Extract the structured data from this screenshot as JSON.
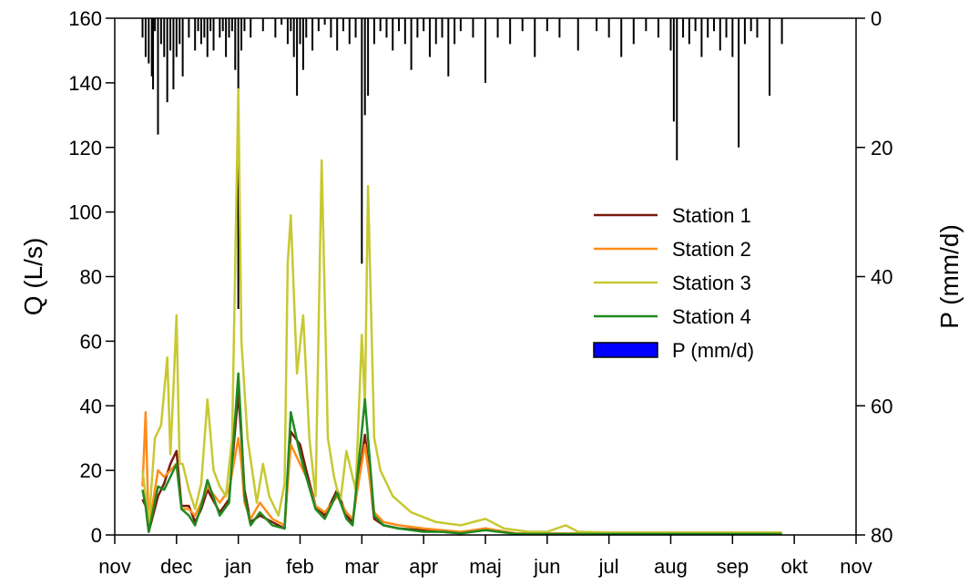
{
  "chart_data": {
    "type": "line",
    "xlabel": "",
    "ylabel": "Q (L/s)",
    "y2label": "P (mm/d)",
    "ylim": [
      0,
      160
    ],
    "y2lim": [
      80,
      0
    ],
    "y_ticks": [
      "0",
      "20",
      "40",
      "60",
      "80",
      "100",
      "120",
      "140",
      "160"
    ],
    "y2_ticks": [
      "0",
      "20",
      "40",
      "60",
      "80"
    ],
    "x_ticks": [
      "nov",
      "dec",
      "jan",
      "feb",
      "mar",
      "apr",
      "maj",
      "jun",
      "jul",
      "aug",
      "sep",
      "okt",
      "nov"
    ],
    "x_unit": "months since nov",
    "grid": false,
    "legend_position": "right-center",
    "legend": [
      "Station 1",
      "Station 2",
      "Station 3",
      "Station 4",
      "P (mm/d)"
    ],
    "colors": {
      "station1": "#7a1a0a",
      "station2": "#ff8c1a",
      "station3": "#c8c832",
      "station4": "#1f8a1f",
      "precip_fill": "#0000ff",
      "precip_bar": "#000000"
    },
    "series": [
      {
        "name": "Station 1",
        "x": [
          0.45,
          0.5,
          0.55,
          0.7,
          0.8,
          0.9,
          1.0,
          1.08,
          1.2,
          1.3,
          1.4,
          1.5,
          1.7,
          1.85,
          2.0,
          2.05,
          2.1,
          2.2,
          2.35,
          2.55,
          2.75,
          2.85,
          3.0,
          3.1,
          3.25,
          3.4,
          3.6,
          3.75,
          3.85,
          4.05,
          4.2,
          4.35,
          4.6,
          5.0,
          5.3,
          5.6,
          6.0,
          6.5,
          7.0,
          8.0,
          9.0,
          10.0,
          10.8
        ],
        "y": [
          11,
          9,
          1,
          12,
          16,
          22,
          26,
          9,
          9,
          4,
          8,
          14,
          7,
          11,
          44,
          30,
          14,
          4,
          6,
          4,
          2,
          32,
          28,
          20,
          9,
          6,
          14,
          6,
          4,
          31,
          5,
          3,
          2,
          1.5,
          1,
          0.5,
          2,
          0.3,
          0.3,
          0.3,
          0.3,
          0.3,
          0.3
        ]
      },
      {
        "name": "Station 2",
        "x": [
          0.45,
          0.5,
          0.55,
          0.7,
          0.8,
          0.9,
          1.0,
          1.08,
          1.2,
          1.3,
          1.4,
          1.5,
          1.7,
          1.85,
          2.0,
          2.05,
          2.1,
          2.2,
          2.35,
          2.55,
          2.75,
          2.85,
          3.0,
          3.1,
          3.25,
          3.4,
          3.6,
          3.75,
          3.85,
          4.05,
          4.2,
          4.35,
          4.6,
          5.0,
          5.3,
          5.6,
          6.0,
          6.5,
          7.0,
          8.0,
          9.0,
          10.0,
          10.8
        ],
        "y": [
          15,
          38,
          2,
          20,
          18,
          20,
          22,
          8,
          8,
          6,
          10,
          15,
          10,
          14,
          30,
          22,
          10,
          5,
          10,
          5,
          3,
          28,
          22,
          18,
          9,
          7,
          12,
          7,
          5,
          28,
          7,
          4,
          3,
          2,
          1.5,
          1,
          2,
          0.5,
          0.5,
          0.4,
          0.4,
          0.4,
          0.4
        ]
      },
      {
        "name": "Station 3",
        "x": [
          0.45,
          0.5,
          0.55,
          0.65,
          0.75,
          0.85,
          0.9,
          0.95,
          1.0,
          1.05,
          1.1,
          1.2,
          1.3,
          1.4,
          1.5,
          1.6,
          1.7,
          1.8,
          1.9,
          2.0,
          2.05,
          2.15,
          2.3,
          2.4,
          2.5,
          2.65,
          2.75,
          2.8,
          2.85,
          2.95,
          3.05,
          3.15,
          3.25,
          3.35,
          3.45,
          3.55,
          3.65,
          3.75,
          3.9,
          4.0,
          4.05,
          4.1,
          4.2,
          4.3,
          4.5,
          4.8,
          5.2,
          5.6,
          6.0,
          6.3,
          6.7,
          7.0,
          7.3,
          7.5,
          8.0,
          9.0,
          10.0,
          10.8
        ],
        "y": [
          20,
          12,
          3,
          30,
          34,
          55,
          25,
          45,
          68,
          22,
          22,
          14,
          8,
          16,
          42,
          20,
          15,
          12,
          30,
          138,
          60,
          30,
          10,
          22,
          12,
          6,
          16,
          84,
          99,
          50,
          68,
          30,
          12,
          116,
          30,
          18,
          10,
          26,
          14,
          62,
          40,
          108,
          30,
          20,
          12,
          7,
          4,
          3,
          5,
          2,
          1,
          1,
          3,
          1,
          0.8,
          0.8,
          0.8,
          0.8
        ]
      },
      {
        "name": "Station 4",
        "x": [
          0.45,
          0.5,
          0.55,
          0.7,
          0.8,
          0.9,
          1.0,
          1.08,
          1.2,
          1.3,
          1.4,
          1.5,
          1.7,
          1.85,
          2.0,
          2.05,
          2.1,
          2.2,
          2.35,
          2.55,
          2.75,
          2.85,
          3.0,
          3.1,
          3.25,
          3.4,
          3.6,
          3.75,
          3.85,
          4.05,
          4.2,
          4.35,
          4.6,
          5.0,
          5.3,
          5.6,
          6.0,
          6.5,
          7.0,
          8.0,
          9.0,
          10.0,
          10.8
        ],
        "y": [
          14,
          9,
          1,
          15,
          14,
          18,
          22,
          8,
          6,
          3,
          9,
          17,
          6,
          10,
          50,
          32,
          12,
          3,
          7,
          3,
          2,
          38,
          25,
          18,
          8,
          5,
          13,
          5,
          3,
          42,
          6,
          3,
          2,
          1,
          1,
          0.5,
          1.5,
          0.3,
          0.3,
          0.3,
          0.3,
          0.3,
          0.3
        ]
      }
    ],
    "precipitation": {
      "name": "P (mm/d)",
      "x": [
        0.45,
        0.5,
        0.55,
        0.6,
        0.62,
        0.65,
        0.7,
        0.75,
        0.8,
        0.85,
        0.9,
        0.95,
        1.0,
        1.05,
        1.1,
        1.2,
        1.3,
        1.35,
        1.4,
        1.45,
        1.5,
        1.55,
        1.6,
        1.7,
        1.75,
        1.8,
        1.85,
        1.9,
        1.95,
        2.0,
        2.05,
        2.1,
        2.2,
        2.4,
        2.6,
        2.7,
        2.8,
        2.85,
        2.9,
        2.95,
        3.0,
        3.05,
        3.1,
        3.2,
        3.3,
        3.4,
        3.5,
        3.6,
        3.7,
        3.8,
        3.9,
        4.0,
        4.05,
        4.1,
        4.2,
        4.3,
        4.4,
        4.5,
        4.6,
        4.7,
        4.8,
        4.9,
        5.0,
        5.1,
        5.2,
        5.3,
        5.4,
        5.5,
        5.6,
        5.8,
        6.0,
        6.2,
        6.4,
        6.6,
        6.8,
        7.0,
        7.2,
        7.5,
        7.8,
        8.0,
        8.2,
        8.4,
        8.6,
        8.8,
        9.0,
        9.05,
        9.1,
        9.2,
        9.3,
        9.4,
        9.5,
        9.6,
        9.7,
        9.8,
        9.9,
        10.0,
        10.1,
        10.2,
        10.3,
        10.4,
        10.6,
        10.8
      ],
      "y": [
        3,
        6,
        7,
        9,
        11,
        2,
        18,
        4,
        6,
        13,
        5,
        11,
        6,
        4,
        9,
        3,
        5,
        2,
        4,
        3,
        6,
        2,
        5,
        3,
        2,
        6,
        3,
        2,
        8,
        45,
        5,
        2,
        3,
        2,
        3,
        1,
        4,
        2,
        6,
        12,
        4,
        8,
        3,
        5,
        2,
        1,
        3,
        5,
        2,
        4,
        3,
        38,
        15,
        12,
        4,
        2,
        3,
        5,
        2,
        4,
        8,
        3,
        2,
        6,
        4,
        3,
        9,
        4,
        2,
        3,
        10,
        3,
        4,
        2,
        6,
        2,
        3,
        5,
        2,
        3,
        6,
        4,
        2,
        3,
        5,
        16,
        22,
        3,
        4,
        2,
        6,
        3,
        2,
        5,
        3,
        6,
        20,
        4,
        2,
        3,
        12,
        4
      ]
    }
  }
}
